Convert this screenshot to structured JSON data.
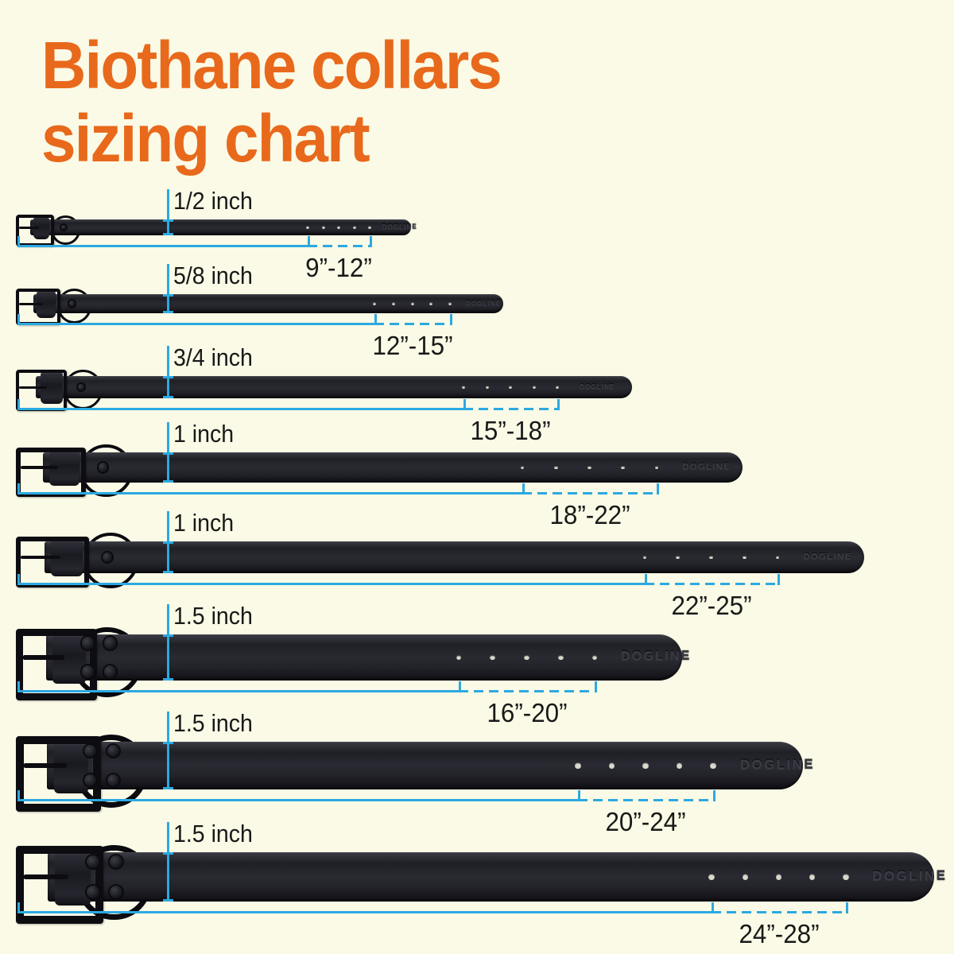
{
  "page": {
    "background_color": "#FAFAE6"
  },
  "title": {
    "text_line1": "Biothane collars",
    "text_line2": "sizing chart",
    "color": "#E8691B"
  },
  "accents": {
    "measure_line_color": "#2CA9E1",
    "collar_color": "#25252B",
    "hole_color": "#D8D8CD",
    "label_text_color": "#191919"
  },
  "brand_emboss": "DOGLINE",
  "collars": [
    {
      "width_label": "1/2 inch",
      "size_range_label": "9”-12”",
      "width_inches": 0.5,
      "min_length_inches": 9,
      "max_length_inches": 12,
      "holes": 5
    },
    {
      "width_label": "5/8 inch",
      "size_range_label": "12”-15”",
      "width_inches": 0.625,
      "min_length_inches": 12,
      "max_length_inches": 15,
      "holes": 5
    },
    {
      "width_label": "3/4 inch",
      "size_range_label": "15”-18”",
      "width_inches": 0.75,
      "min_length_inches": 15,
      "max_length_inches": 18,
      "holes": 5
    },
    {
      "width_label": "1 inch",
      "size_range_label": "18”-22”",
      "width_inches": 1,
      "min_length_inches": 18,
      "max_length_inches": 22,
      "holes": 5
    },
    {
      "width_label": "1 inch",
      "size_range_label": "22”-25”",
      "width_inches": 1,
      "min_length_inches": 22,
      "max_length_inches": 25,
      "holes": 5
    },
    {
      "width_label": "1.5 inch",
      "size_range_label": "16”-20”",
      "width_inches": 1.5,
      "min_length_inches": 16,
      "max_length_inches": 20,
      "holes": 5
    },
    {
      "width_label": "1.5 inch",
      "size_range_label": "20”-24”",
      "width_inches": 1.5,
      "min_length_inches": 20,
      "max_length_inches": 24,
      "holes": 5
    },
    {
      "width_label": "1.5 inch",
      "size_range_label": "24”-28”",
      "width_inches": 1.5,
      "min_length_inches": 24,
      "max_length_inches": 28,
      "holes": 5
    }
  ]
}
